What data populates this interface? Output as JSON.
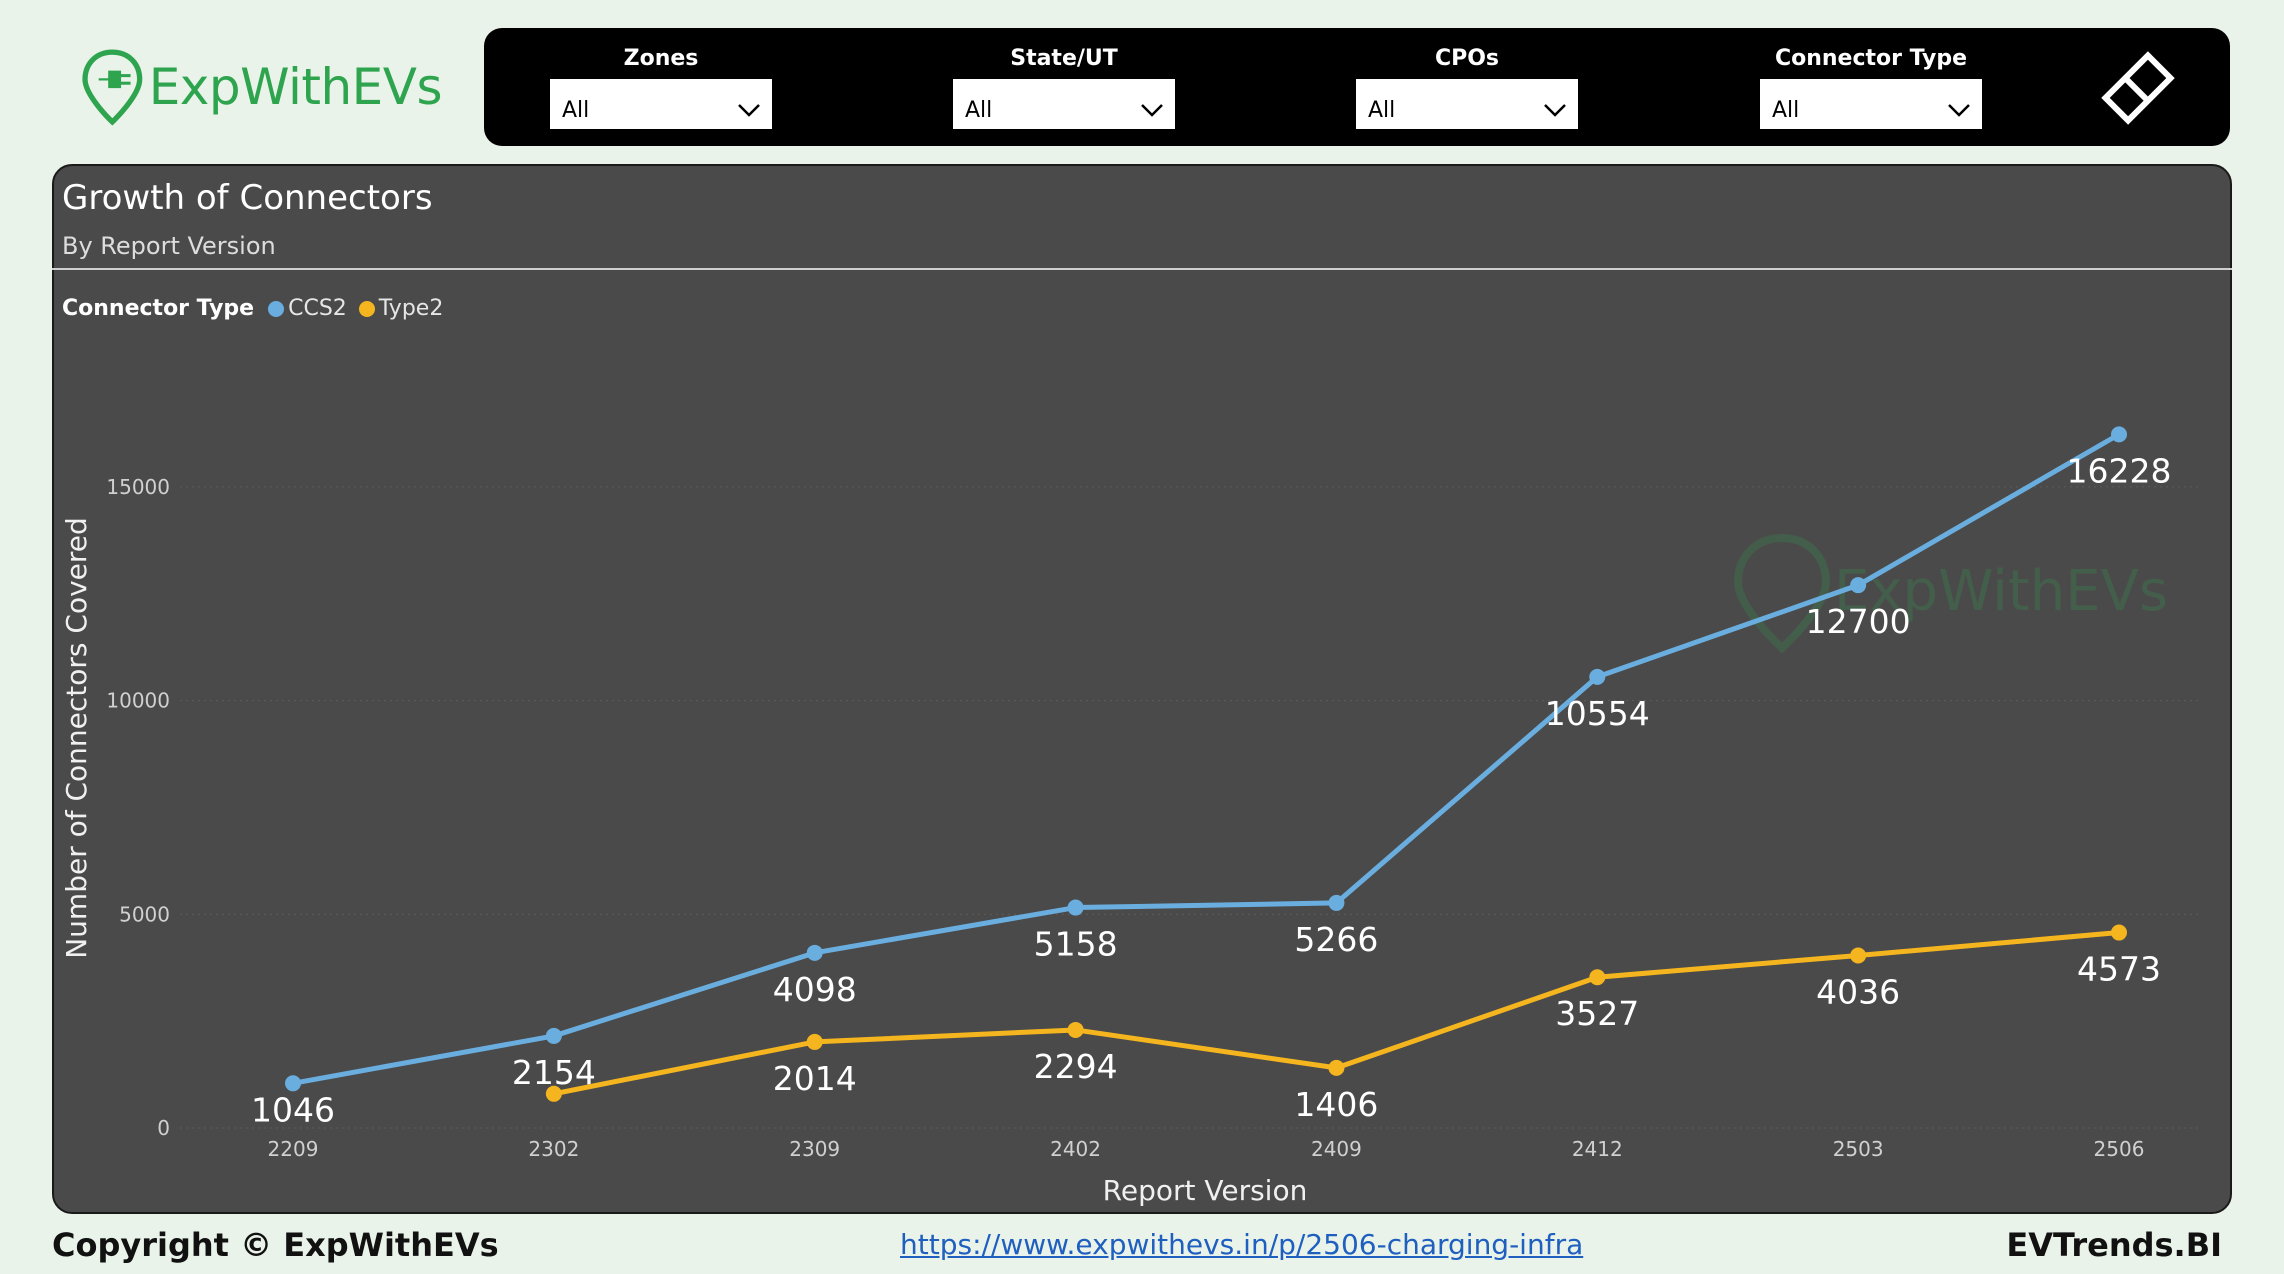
{
  "logo": {
    "text": "ExpWithEVs"
  },
  "filters": [
    {
      "label": "Zones",
      "value": "All"
    },
    {
      "label": "State/UT",
      "value": "All"
    },
    {
      "label": "CPOs",
      "value": "All"
    },
    {
      "label": "Connector Type",
      "value": "All"
    }
  ],
  "colors": {
    "ccs2": "#6aaee0",
    "type2": "#f5b51e",
    "panel": "#4a4a4a",
    "brand": "#2ea44f"
  },
  "chart_data": {
    "type": "line",
    "title": "Growth of Connectors",
    "subtitle": "By Report Version",
    "xlabel": "Report Version",
    "ylabel": "Number of Connectors Covered",
    "legend_title": "Connector Type",
    "legend_position": "top-left",
    "categories": [
      "2209",
      "2302",
      "2309",
      "2402",
      "2409",
      "2412",
      "2503",
      "2506"
    ],
    "ylim": [
      0,
      17500
    ],
    "yticks": [
      0,
      5000,
      10000,
      15000
    ],
    "grid": true,
    "series": [
      {
        "name": "CCS2",
        "values": [
          1046,
          2154,
          4098,
          5158,
          5266,
          10554,
          12700,
          16228
        ]
      },
      {
        "name": "Type2",
        "values": [
          null,
          800,
          2014,
          2294,
          1406,
          3527,
          4036,
          4573
        ]
      }
    ],
    "data_labels": {
      "CCS2": [
        "1046",
        "2154",
        "4098",
        "5158",
        "5266",
        "10554",
        "12700",
        "16228"
      ],
      "Type2": [
        "",
        "",
        "2014",
        "2294",
        "1406",
        "3527",
        "4036",
        "4573"
      ]
    },
    "watermark": "ExpWithEVs"
  },
  "footer": {
    "copyright": "Copyright © ExpWithEVs",
    "link": "https://www.expwithevs.in/p/2506-charging-infra",
    "brand": "EVTrends.BI"
  }
}
